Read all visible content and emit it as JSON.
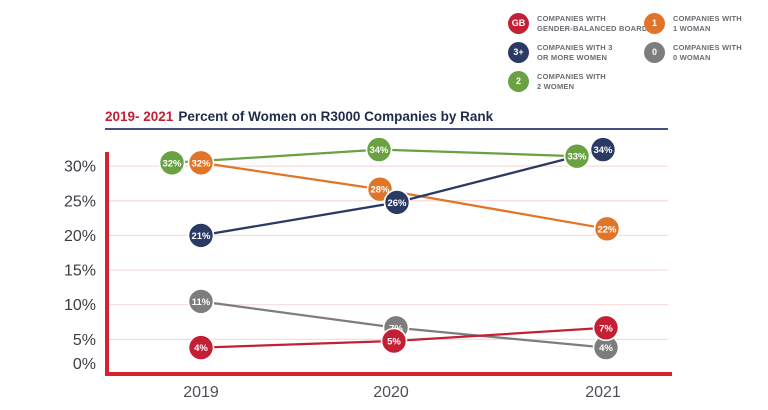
{
  "title": {
    "range": "2019- 2021",
    "text": "Percent of Women on R3000 Companies by Rank"
  },
  "legend": {
    "items": [
      {
        "badge": "GB",
        "color": "#c32036",
        "line1": "COMPANIES WITH",
        "line2": "GENDER-BALANCED BOARDS"
      },
      {
        "badge": "3+",
        "color": "#2b3a64",
        "line1": "COMPANIES WITH 3",
        "line2": "OR MORE WOMEN"
      },
      {
        "badge": "2",
        "color": "#69a143",
        "line1": "COMPANIES WITH",
        "line2": "2 WOMEN"
      },
      {
        "badge": "1",
        "color": "#e0752a",
        "line1": "COMPANIES WITH",
        "line2": "1 WOMAN"
      },
      {
        "badge": "0",
        "color": "#7d7d7d",
        "line1": "COMPANIES WITH",
        "line2": "0 WOMAN"
      }
    ]
  },
  "chart_data": {
    "type": "line",
    "title": "2019- 2021 Percent of Women on R3000 Companies by Rank",
    "x_categories": [
      "2019",
      "2020",
      "2021"
    ],
    "y_ticks": [
      0,
      5,
      10,
      15,
      20,
      25,
      30
    ],
    "y_tick_suffix": "%",
    "ylim": [
      0,
      35
    ],
    "grid": true,
    "legend_position": "top-right",
    "axis_color": "#d2232f",
    "grid_color": "#f7dcdc",
    "xlabel": "",
    "ylabel": "",
    "series": [
      {
        "key": "gender_balanced",
        "badge": "GB",
        "name": "Companies with Gender-Balanced Boards",
        "color": "#c32036",
        "values": [
          4,
          5,
          7
        ],
        "labels": [
          "4%",
          "5%",
          "7%"
        ]
      },
      {
        "key": "three_plus",
        "badge": "3+",
        "name": "Companies with 3 or More Women",
        "color": "#2b3a64",
        "values": [
          21,
          26,
          34
        ],
        "labels": [
          "21%",
          "26%",
          "34%"
        ]
      },
      {
        "key": "two_women",
        "badge": "2",
        "name": "Companies with 2 Women",
        "color": "#69a143",
        "values": [
          32,
          34,
          33
        ],
        "labels": [
          "32%",
          "34%",
          "33%"
        ]
      },
      {
        "key": "one_woman",
        "badge": "1",
        "name": "Companies with 1 Woman",
        "color": "#e0752a",
        "values": [
          32,
          28,
          22
        ],
        "labels": [
          "32%",
          "28%",
          "22%"
        ]
      },
      {
        "key": "zero_women",
        "badge": "0",
        "name": "Companies with 0 Woman",
        "color": "#7d7d7d",
        "values": [
          11,
          7,
          4
        ],
        "labels": [
          "11%",
          "7%",
          "4%"
        ]
      }
    ]
  }
}
